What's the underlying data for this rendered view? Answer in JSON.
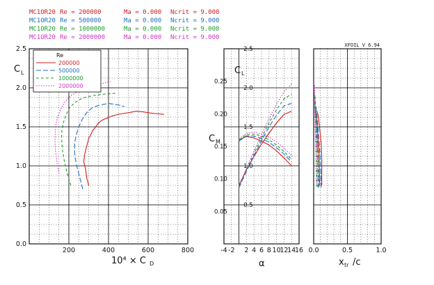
{
  "header_rows": [
    {
      "airfoil": "MC1OR20",
      "re_label": "Re = 200000",
      "ma_label": "Ma = 0.000",
      "ncrit_label": "Ncrit = 9.000",
      "color": "#d21c1c"
    },
    {
      "airfoil": "MC1OR20",
      "re_label": "Re = 500000",
      "ma_label": "Ma = 0.000",
      "ncrit_label": "Ncrit = 9.000",
      "color": "#1e6ec8"
    },
    {
      "airfoil": "MC1OR20",
      "re_label": "Re = 1000000",
      "ma_label": "Ma = 0.000",
      "ncrit_label": "Ncrit = 9.000",
      "color": "#1e9a2e"
    },
    {
      "airfoil": "MC1OR20",
      "re_label": "Re = 2000000",
      "ma_label": "Ma = 0.000",
      "ncrit_label": "Ncrit = 9.000",
      "color": "#d232c8"
    }
  ],
  "version_label": "XFOIL V 6.94",
  "chart_data": [
    {
      "type": "line",
      "name": "drag_polar",
      "xlabel": "10⁴ × CD",
      "ylabel": "CL",
      "xlim": [
        0,
        800
      ],
      "ylim": [
        0,
        2.5
      ],
      "xticks": [
        "200",
        "400",
        "600",
        "800"
      ],
      "yticks": [
        "0.0",
        "0.5",
        "1.0",
        "1.5",
        "2.0",
        "2.5"
      ],
      "grid": true,
      "legend": {
        "title": "Re",
        "placement": "top-left",
        "entries": [
          "200000",
          "500000",
          "1000000",
          "2000000"
        ]
      },
      "series": [
        {
          "name": "200000",
          "color": "#d21c1c",
          "dash": "solid",
          "x": [
            300,
            290,
            285,
            275,
            280,
            285,
            290,
            295,
            300,
            310,
            320,
            335,
            350,
            365,
            380,
            400,
            420,
            450,
            470,
            500,
            540,
            580,
            600,
            640,
            680
          ],
          "y": [
            0.75,
            0.85,
            0.95,
            1.05,
            1.15,
            1.2,
            1.25,
            1.3,
            1.35,
            1.4,
            1.45,
            1.5,
            1.55,
            1.58,
            1.6,
            1.62,
            1.64,
            1.66,
            1.67,
            1.68,
            1.7,
            1.69,
            1.68,
            1.67,
            1.66
          ]
        },
        {
          "name": "500000",
          "color": "#1e6ec8",
          "dash": "longdash",
          "x": [
            270,
            255,
            240,
            232,
            228,
            230,
            238,
            250,
            268,
            290,
            320,
            360,
            400,
            450,
            480
          ],
          "y": [
            0.7,
            0.85,
            1.0,
            1.1,
            1.2,
            1.3,
            1.4,
            1.5,
            1.6,
            1.68,
            1.75,
            1.78,
            1.8,
            1.78,
            1.76
          ]
        },
        {
          "name": "1000000",
          "color": "#1e9a2e",
          "dash": "dash",
          "x": [
            210,
            192,
            178,
            168,
            163,
            165,
            172,
            185,
            205,
            235,
            270,
            320,
            380,
            440
          ],
          "y": [
            0.75,
            0.9,
            1.05,
            1.2,
            1.35,
            1.45,
            1.55,
            1.65,
            1.75,
            1.82,
            1.87,
            1.9,
            1.92,
            1.93
          ]
        },
        {
          "name": "2000000",
          "color": "#d232c8",
          "dash": "dot",
          "x": [
            150,
            140,
            132,
            130,
            133,
            142,
            158,
            180,
            210,
            250,
            300,
            360,
            410
          ],
          "y": [
            0.9,
            1.05,
            1.2,
            1.35,
            1.5,
            1.62,
            1.72,
            1.82,
            1.9,
            1.96,
            2.01,
            2.05,
            2.08
          ]
        }
      ]
    },
    {
      "type": "line",
      "name": "lift_and_moment_vs_alpha",
      "xlabel": "α",
      "ylabel": "CL",
      "y2label": "CM",
      "xlim": [
        -4,
        16
      ],
      "ylim": [
        0,
        2.5
      ],
      "xticks": [
        "-4",
        "-2",
        "2",
        "4",
        "6",
        "8",
        "10",
        "12",
        "14",
        "16"
      ],
      "yticks": [
        "0.5",
        "1.0",
        "1.5",
        "2.0",
        "2.5"
      ],
      "cm_ticks": [
        "0.05",
        "0.10",
        "0.15",
        "0.20",
        "0.25"
      ],
      "cm_range": [
        0,
        0.3
      ],
      "grid": true,
      "series": [
        {
          "name": "200000",
          "color": "#d21c1c",
          "dash": "solid",
          "alpha": [
            0,
            2,
            4,
            6,
            8,
            10,
            12,
            14
          ],
          "cl": [
            0.75,
            0.95,
            1.12,
            1.28,
            1.42,
            1.55,
            1.66,
            1.7
          ],
          "cm": [
            0.16,
            0.165,
            0.163,
            0.158,
            0.152,
            0.143,
            0.132,
            0.12
          ]
        },
        {
          "name": "500000",
          "color": "#1e6ec8",
          "dash": "longdash",
          "alpha": [
            0,
            2,
            4,
            6,
            8,
            10,
            12,
            14
          ],
          "cl": [
            0.72,
            0.93,
            1.13,
            1.32,
            1.5,
            1.65,
            1.77,
            1.8
          ],
          "cm": [
            0.158,
            0.166,
            0.166,
            0.162,
            0.156,
            0.148,
            0.138,
            0.126
          ]
        },
        {
          "name": "1000000",
          "color": "#1e9a2e",
          "dash": "dash",
          "alpha": [
            0,
            2,
            4,
            6,
            8,
            10,
            12,
            14
          ],
          "cl": [
            0.73,
            0.95,
            1.16,
            1.36,
            1.55,
            1.72,
            1.86,
            1.92
          ],
          "cm": [
            0.16,
            0.168,
            0.169,
            0.166,
            0.16,
            0.152,
            0.142,
            0.13
          ]
        },
        {
          "name": "2000000",
          "color": "#d232c8",
          "dash": "dot",
          "alpha": [
            0,
            2,
            4,
            6,
            8,
            10,
            12,
            14
          ],
          "cl": [
            0.74,
            0.97,
            1.19,
            1.4,
            1.6,
            1.79,
            1.95,
            2.05
          ],
          "cm": [
            0.161,
            0.17,
            0.172,
            0.169,
            0.164,
            0.157,
            0.147,
            0.136
          ]
        }
      ]
    },
    {
      "type": "line",
      "name": "transition_location",
      "xlabel": "xtr / c",
      "xlim": [
        0,
        1.0
      ],
      "ylim": [
        0,
        2.5
      ],
      "xticks": [
        "0.0",
        "0.5",
        "1.0"
      ],
      "grid": true,
      "series": [
        {
          "name": "200000",
          "color": "#d21c1c",
          "dash": "solid",
          "x": [
            0.09,
            0.085,
            0.08,
            0.07,
            0.06,
            0.05,
            0.04,
            0.03
          ],
          "y": [
            0.75,
            0.95,
            1.12,
            1.28,
            1.42,
            1.55,
            1.66,
            1.7
          ]
        },
        {
          "name": "500000",
          "color": "#1e6ec8",
          "dash": "longdash",
          "x": [
            0.07,
            0.065,
            0.06,
            0.05,
            0.04,
            0.03,
            0.02,
            0.015
          ],
          "y": [
            0.72,
            0.93,
            1.13,
            1.32,
            1.5,
            1.65,
            1.77,
            1.8
          ]
        },
        {
          "name": "1000000",
          "color": "#1e9a2e",
          "dash": "dash",
          "x": [
            0.05,
            0.045,
            0.04,
            0.035,
            0.03,
            0.02,
            0.015,
            0.01
          ],
          "y": [
            0.73,
            0.95,
            1.16,
            1.36,
            1.55,
            1.72,
            1.86,
            1.92
          ]
        },
        {
          "name": "2000000",
          "color": "#d232c8",
          "dash": "dot",
          "x": [
            0.04,
            0.035,
            0.03,
            0.025,
            0.02,
            0.015,
            0.01,
            0.008
          ],
          "y": [
            0.74,
            0.97,
            1.19,
            1.4,
            1.6,
            1.79,
            1.95,
            2.05
          ]
        }
      ]
    }
  ]
}
